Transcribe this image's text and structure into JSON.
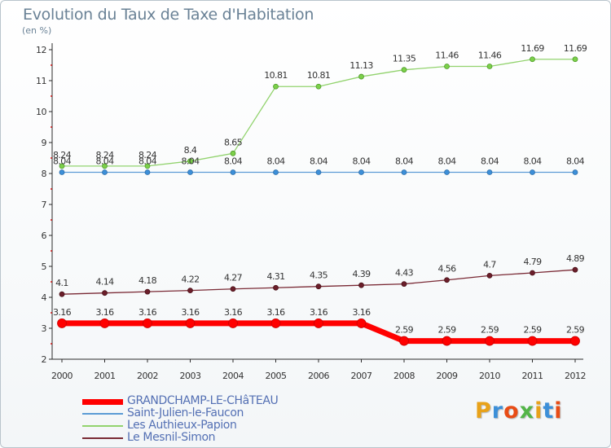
{
  "header": {
    "title": "Evolution du Taux de Taxe d'Habitation",
    "unit": "(en %)"
  },
  "logo": {
    "text": "Proxiti",
    "colors": [
      "#e8a21a",
      "#3c8fd8",
      "#e84c16",
      "#52b548",
      "#e8a21a",
      "#3c8fd8",
      "#e84c16"
    ]
  },
  "chart_data": {
    "type": "line",
    "x": [
      "2000",
      "2001",
      "2002",
      "2003",
      "2004",
      "2005",
      "2006",
      "2007",
      "2008",
      "2009",
      "2010",
      "2011",
      "2012"
    ],
    "ylim": [
      2,
      12
    ],
    "yticks": [
      2,
      3,
      4,
      5,
      6,
      7,
      8,
      9,
      10,
      11,
      12
    ],
    "grid": false,
    "legend_position": "bottom-left",
    "series": [
      {
        "name": "GRANDCHAMP-LE-CHâTEAU",
        "color": "#ff0000",
        "values": [
          3.16,
          3.16,
          3.16,
          3.16,
          3.16,
          3.16,
          3.16,
          3.16,
          2.59,
          2.59,
          2.59,
          2.59,
          2.59
        ],
        "labels": [
          "3.16",
          "3.16",
          "3.16",
          "3.16",
          "3.16",
          "3.16",
          "3.16",
          "3.16",
          "2.59",
          "2.59",
          "2.59",
          "2.59",
          "2.59"
        ]
      },
      {
        "name": "Saint-Julien-le-Faucon",
        "color": "#5b9bd5",
        "values": [
          8.04,
          8.04,
          8.04,
          8.04,
          8.04,
          8.04,
          8.04,
          8.04,
          8.04,
          8.04,
          8.04,
          8.04,
          8.04
        ],
        "labels": [
          "8.04",
          "8.04",
          "8.04",
          "8.04",
          "8.04",
          "8.04",
          "8.04",
          "8.04",
          "8.04",
          "8.04",
          "8.04",
          "8.04",
          "8.04"
        ]
      },
      {
        "name": "Les Authieux-Papion",
        "color": "#92d36e",
        "values": [
          8.24,
          8.24,
          8.24,
          8.4,
          8.65,
          10.81,
          10.81,
          11.13,
          11.35,
          11.46,
          11.46,
          11.69,
          11.69
        ],
        "labels": [
          "8.24",
          "8.24",
          "8.24",
          "8.4",
          "8.65",
          "10.81",
          "10.81",
          "11.13",
          "11.35",
          "11.46",
          "11.46",
          "11.69",
          "11.69"
        ]
      },
      {
        "name": "Le Mesnil-Simon",
        "color": "#7a2a35",
        "values": [
          4.1,
          4.14,
          4.18,
          4.22,
          4.27,
          4.31,
          4.35,
          4.39,
          4.43,
          4.56,
          4.7,
          4.79,
          4.89
        ],
        "labels": [
          "4.1",
          "4.14",
          "4.18",
          "4.22",
          "4.27",
          "4.31",
          "4.35",
          "4.39",
          "4.43",
          "4.56",
          "4.7",
          "4.79",
          "4.89"
        ]
      }
    ]
  }
}
